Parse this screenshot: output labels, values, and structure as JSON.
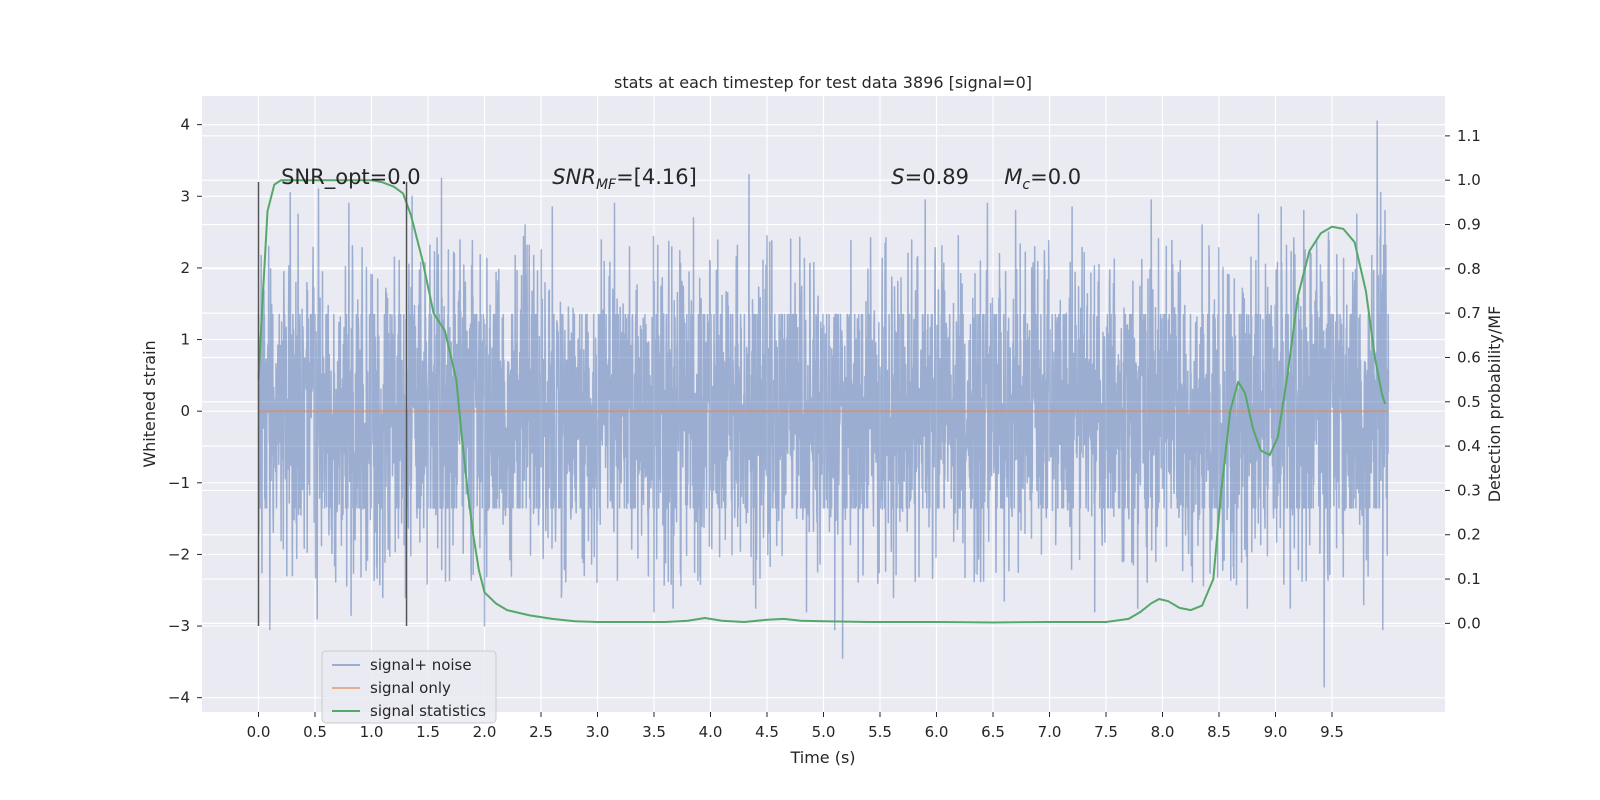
{
  "chart_data": {
    "type": "line",
    "title": "stats at each timestep for test data 3896 [signal=0]",
    "xlabel": "Time (s)",
    "ylabel": "Whitened strain",
    "ylabel_right": "Detection probability/MF",
    "xlim": [
      -0.5,
      10.5
    ],
    "ylim": [
      -4.2,
      4.4
    ],
    "ylim_right": [
      -0.2,
      1.19
    ],
    "x_ticks": [
      0.0,
      0.5,
      1.0,
      1.5,
      2.0,
      2.5,
      3.0,
      3.5,
      4.0,
      4.5,
      5.0,
      5.5,
      6.0,
      6.5,
      7.0,
      7.5,
      8.0,
      8.5,
      9.0,
      9.5
    ],
    "x_tick_labels": [
      "0.0",
      "0.5",
      "1.0",
      "1.5",
      "2.0",
      "2.5",
      "3.0",
      "3.5",
      "4.0",
      "4.5",
      "5.0",
      "5.5",
      "6.0",
      "6.5",
      "7.0",
      "7.5",
      "8.0",
      "8.5",
      "9.0",
      "9.5"
    ],
    "y_ticks": [
      4,
      3,
      2,
      1,
      0,
      -1,
      -2,
      -3,
      -4
    ],
    "y_tick_labels": [
      "4",
      "3",
      "2",
      "1",
      "0",
      "−1",
      "−2",
      "−3",
      "−4"
    ],
    "y_ticks_right": [
      1.1,
      1.0,
      0.9,
      0.8,
      0.7,
      0.6,
      0.5,
      0.4,
      0.3,
      0.2,
      0.1,
      0.0
    ],
    "y_tick_labels_right": [
      "1.1",
      "1.0",
      "0.9",
      "0.8",
      "0.7",
      "0.6",
      "0.5",
      "0.4",
      "0.3",
      "0.2",
      "0.1",
      "0.0"
    ],
    "grid": true,
    "legend_position": "lower-left",
    "annotations": [
      {
        "x": 0.2,
        "y": 3.2,
        "parts": [
          {
            "t": "SNR_opt=0.0",
            "i": false
          }
        ]
      },
      {
        "x": 2.6,
        "y": 3.2,
        "parts": [
          {
            "t": "SNR",
            "i": true
          },
          {
            "t": "MF",
            "i": true,
            "sub": true
          },
          {
            "t": "=[4.16]",
            "i": false
          }
        ]
      },
      {
        "x": 5.6,
        "y": 3.2,
        "parts": [
          {
            "t": "S",
            "i": true
          },
          {
            "t": "=0.89",
            "i": false
          }
        ]
      },
      {
        "x": 6.6,
        "y": 3.2,
        "parts": [
          {
            "t": "M",
            "i": true
          },
          {
            "t": "c",
            "i": true,
            "sub": true
          },
          {
            "t": "=0.0",
            "i": false
          }
        ]
      }
    ],
    "vlines": [
      {
        "x": 0.0,
        "ymin": -3.0,
        "ymax": 3.2,
        "color": "#555555"
      },
      {
        "x": 1.31,
        "ymin": -3.0,
        "ymax": 3.2,
        "color": "#555555"
      }
    ],
    "series": [
      {
        "name": "signal+ noise",
        "color": "#4c72b0",
        "opacity": 0.5,
        "axis": "left",
        "x_range": [
          0.0,
          10.0
        ],
        "core_amplitude": 1.35,
        "peaks": [
          {
            "x": 0.09,
            "y": 2.3
          },
          {
            "x": 0.25,
            "y": -2.3
          },
          {
            "x": 0.28,
            "y": 3.05
          },
          {
            "x": 0.35,
            "y": 2.75
          },
          {
            "x": 0.1,
            "y": -3.05
          },
          {
            "x": 0.52,
            "y": -2.9
          },
          {
            "x": 0.53,
            "y": 3.1
          },
          {
            "x": 0.8,
            "y": 2.9
          },
          {
            "x": 0.82,
            "y": -2.85
          },
          {
            "x": 1.1,
            "y": -2.6
          },
          {
            "x": 1.3,
            "y": -2.6
          },
          {
            "x": 1.36,
            "y": 3.0
          },
          {
            "x": 1.62,
            "y": 3.25
          },
          {
            "x": 2.0,
            "y": -3.0
          },
          {
            "x": 2.36,
            "y": 2.6
          },
          {
            "x": 2.6,
            "y": 2.85
          },
          {
            "x": 2.68,
            "y": -2.6
          },
          {
            "x": 3.15,
            "y": 2.9
          },
          {
            "x": 3.5,
            "y": -2.8
          },
          {
            "x": 3.67,
            "y": -2.75
          },
          {
            "x": 3.85,
            "y": 2.7
          },
          {
            "x": 4.34,
            "y": 3.3
          },
          {
            "x": 4.4,
            "y": -2.75
          },
          {
            "x": 4.5,
            "y": 2.45
          },
          {
            "x": 4.85,
            "y": -2.8
          },
          {
            "x": 5.17,
            "y": -3.45
          },
          {
            "x": 5.1,
            "y": -3.05
          },
          {
            "x": 5.62,
            "y": -2.6
          },
          {
            "x": 5.9,
            "y": 2.95
          },
          {
            "x": 6.45,
            "y": 2.9
          },
          {
            "x": 6.7,
            "y": 2.8
          },
          {
            "x": 6.6,
            "y": -2.65
          },
          {
            "x": 7.2,
            "y": 2.85
          },
          {
            "x": 7.4,
            "y": 3.05
          },
          {
            "x": 7.4,
            "y": -2.8
          },
          {
            "x": 7.78,
            "y": -2.75
          },
          {
            "x": 7.9,
            "y": 2.95
          },
          {
            "x": 8.35,
            "y": 2.6
          },
          {
            "x": 8.75,
            "y": -2.75
          },
          {
            "x": 8.85,
            "y": 2.75
          },
          {
            "x": 9.05,
            "y": 2.85
          },
          {
            "x": 9.13,
            "y": -2.75
          },
          {
            "x": 9.25,
            "y": 2.8
          },
          {
            "x": 9.43,
            "y": -3.85
          },
          {
            "x": 9.47,
            "y": 2.5
          },
          {
            "x": 9.72,
            "y": 2.75
          },
          {
            "x": 9.78,
            "y": -2.7
          },
          {
            "x": 9.9,
            "y": 4.05
          },
          {
            "x": 9.93,
            "y": 3.05
          },
          {
            "x": 9.95,
            "y": -3.05
          },
          {
            "x": 9.97,
            "y": 2.8
          }
        ]
      },
      {
        "name": "signal only",
        "color": "#dd8452",
        "opacity": 0.6,
        "axis": "left",
        "x": [
          0.0,
          10.0
        ],
        "y": [
          0.0,
          0.0
        ]
      },
      {
        "name": "signal statistics",
        "color": "#55a868",
        "opacity": 1.0,
        "axis": "right",
        "x": [
          0.0,
          0.03,
          0.08,
          0.14,
          0.2,
          0.3,
          0.5,
          0.7,
          0.9,
          1.0,
          1.1,
          1.2,
          1.28,
          1.35,
          1.45,
          1.55,
          1.65,
          1.75,
          1.8,
          1.85,
          1.9,
          1.95,
          2.0,
          2.1,
          2.2,
          2.4,
          2.6,
          2.8,
          3.0,
          3.3,
          3.6,
          3.8,
          3.95,
          4.1,
          4.3,
          4.5,
          4.65,
          4.8,
          5.0,
          5.2,
          5.4,
          5.6,
          6.0,
          6.5,
          7.0,
          7.5,
          7.7,
          7.8,
          7.9,
          7.97,
          8.05,
          8.15,
          8.25,
          8.35,
          8.45,
          8.52,
          8.6,
          8.67,
          8.73,
          8.8,
          8.87,
          8.95,
          9.02,
          9.1,
          9.2,
          9.3,
          9.4,
          9.5,
          9.6,
          9.7,
          9.8,
          9.88,
          9.94,
          9.97
        ],
        "y": [
          0.55,
          0.7,
          0.93,
          0.99,
          1.0,
          1.0,
          1.0,
          1.0,
          1.0,
          1.0,
          0.995,
          0.985,
          0.97,
          0.92,
          0.82,
          0.7,
          0.66,
          0.55,
          0.42,
          0.3,
          0.2,
          0.12,
          0.07,
          0.045,
          0.03,
          0.018,
          0.01,
          0.005,
          0.003,
          0.003,
          0.003,
          0.006,
          0.012,
          0.006,
          0.003,
          0.008,
          0.01,
          0.006,
          0.005,
          0.004,
          0.003,
          0.003,
          0.003,
          0.002,
          0.003,
          0.003,
          0.01,
          0.025,
          0.045,
          0.055,
          0.05,
          0.035,
          0.03,
          0.04,
          0.1,
          0.3,
          0.48,
          0.545,
          0.52,
          0.44,
          0.39,
          0.38,
          0.42,
          0.55,
          0.74,
          0.84,
          0.88,
          0.895,
          0.89,
          0.86,
          0.75,
          0.6,
          0.52,
          0.495
        ]
      }
    ]
  }
}
